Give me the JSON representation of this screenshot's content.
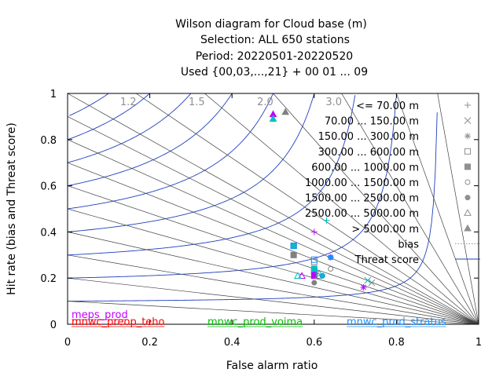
{
  "chart_data": {
    "type": "scatter",
    "title_lines": [
      "Wilson diagram  for Cloud base (m)",
      "Selection: ALL    650 stations",
      "Period: 20220501-20220520",
      "Used {00,03,...,21} + 00 01 ... 09"
    ],
    "xlabel": "False alarm ratio",
    "ylabel": "Hit rate (bias and Threat score)",
    "xlim": [
      0,
      1
    ],
    "ylim": [
      0,
      1
    ],
    "xticks": [
      "0",
      "0.2",
      "0.4",
      "0.6",
      "0.8",
      "1"
    ],
    "yticks": [
      "0",
      "0.2",
      "0.4",
      "0.6",
      "0.8",
      "1"
    ],
    "bias_lines": [
      0.1,
      0.2,
      0.3,
      0.4,
      0.5,
      0.6,
      0.7,
      0.8,
      0.9,
      1.0,
      1.2,
      1.5,
      2.0,
      3.0,
      5.0,
      10.0
    ],
    "bias_labels": [
      {
        "bias": 1.2,
        "text": "1.2"
      },
      {
        "bias": 1.5,
        "text": "1.5"
      },
      {
        "bias": 2.0,
        "text": "2.0"
      },
      {
        "bias": 3.0,
        "text": "3.0"
      }
    ],
    "threat_score_lines": [
      0.1,
      0.2,
      0.3,
      0.4,
      0.5,
      0.6,
      0.7,
      0.8,
      0.9
    ],
    "legend_position": "top-right",
    "legend": [
      {
        "label": "<= 70.00 m",
        "symbol": "plus"
      },
      {
        "label": "70.00 ... 150.00 m",
        "symbol": "cross"
      },
      {
        "label": "150.00 ... 300.00 m",
        "symbol": "star"
      },
      {
        "label": "300.00 ... 600.00 m",
        "symbol": "square-open"
      },
      {
        "label": "600.00 ... 1000.00 m",
        "symbol": "square-filled"
      },
      {
        "label": "1000.00 ... 1500.00 m",
        "symbol": "circle-open"
      },
      {
        "label": "1500.00 ... 2500.00 m",
        "symbol": "circle-filled"
      },
      {
        "label": "2500.00 ... 5000.00 m",
        "symbol": "triangle-open"
      },
      {
        "label": "> 5000.00 m",
        "symbol": "triangle-filled"
      },
      {
        "label": "bias",
        "symbol": "dotted-line"
      },
      {
        "label": "Threat score",
        "symbol": "blue-line"
      }
    ],
    "models": [
      {
        "name": "meps_prod",
        "color": "#c000ff"
      },
      {
        "name": "mnwc_preop_teho",
        "color": "#ff0000"
      },
      {
        "name": "mnwc_prod_voima",
        "color": "#00c000"
      },
      {
        "name": "mnwc_prod_stratus",
        "color": "#1e8fff"
      }
    ],
    "series": [
      {
        "name": "meps_prod",
        "color": "#c000ff",
        "points": [
          {
            "x": 0.5,
            "y": 0.91,
            "symbol": "triangle-filled"
          },
          {
            "x": 0.55,
            "y": 0.34,
            "symbol": "square-filled"
          },
          {
            "x": 0.6,
            "y": 0.4,
            "symbol": "plus"
          },
          {
            "x": 0.57,
            "y": 0.21,
            "symbol": "triangle-open"
          },
          {
            "x": 0.6,
            "y": 0.21,
            "symbol": "square-filled"
          },
          {
            "x": 0.6,
            "y": 0.23,
            "symbol": "square-filled"
          },
          {
            "x": 0.64,
            "y": 0.29,
            "symbol": "star"
          },
          {
            "x": 0.72,
            "y": 0.16,
            "symbol": "star"
          }
        ]
      },
      {
        "name": "mnwc_preop_teho",
        "color": "#808080",
        "points": [
          {
            "x": 0.53,
            "y": 0.92,
            "symbol": "triangle-filled"
          },
          {
            "x": 0.55,
            "y": 0.3,
            "symbol": "square-filled"
          },
          {
            "x": 0.6,
            "y": 0.27,
            "symbol": "square-open"
          },
          {
            "x": 0.61,
            "y": 0.21,
            "symbol": "triangle-open"
          },
          {
            "x": 0.64,
            "y": 0.24,
            "symbol": "circle-open"
          },
          {
            "x": 0.6,
            "y": 0.18,
            "symbol": "circle-filled"
          },
          {
            "x": 0.74,
            "y": 0.18,
            "symbol": "cross"
          }
        ]
      },
      {
        "name": "mnwc_prod_voima",
        "color": "#00c0c0",
        "points": [
          {
            "x": 0.5,
            "y": 0.89,
            "symbol": "triangle-filled"
          },
          {
            "x": 0.55,
            "y": 0.34,
            "symbol": "square-filled"
          },
          {
            "x": 0.63,
            "y": 0.45,
            "symbol": "plus"
          },
          {
            "x": 0.56,
            "y": 0.21,
            "symbol": "triangle-open"
          },
          {
            "x": 0.6,
            "y": 0.24,
            "symbol": "square-filled"
          },
          {
            "x": 0.61,
            "y": 0.22,
            "symbol": "circle-open"
          },
          {
            "x": 0.62,
            "y": 0.21,
            "symbol": "circle-filled"
          },
          {
            "x": 0.73,
            "y": 0.19,
            "symbol": "cross"
          }
        ]
      },
      {
        "name": "mnwc_prod_stratus",
        "color": "#1e8fff",
        "points": [
          {
            "x": 0.55,
            "y": 0.34,
            "symbol": "square-open"
          },
          {
            "x": 0.6,
            "y": 0.28,
            "symbol": "square-open"
          },
          {
            "x": 0.62,
            "y": 0.21,
            "symbol": "circle-open"
          },
          {
            "x": 0.64,
            "y": 0.29,
            "symbol": "circle-filled"
          }
        ]
      }
    ]
  }
}
